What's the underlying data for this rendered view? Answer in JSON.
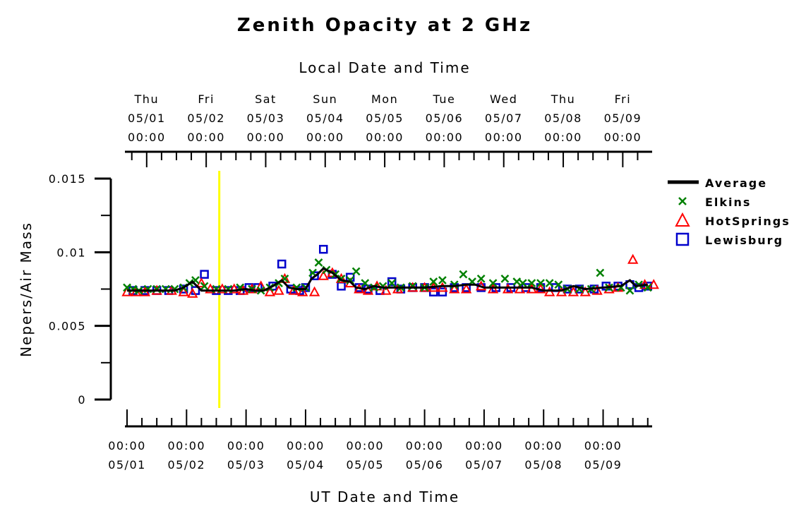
{
  "chart_data": {
    "type": "line",
    "title": "Zenith Opacity at 2 GHz",
    "top_axis_label": "Local Date and Time",
    "xlabel": "UT Date and Time",
    "ylabel": "Nepers/Air Mass",
    "ylim": [
      0,
      0.015
    ],
    "xlim_days": [
      0,
      8.8
    ],
    "y_ticks": [
      {
        "v": 0,
        "label": "0"
      },
      {
        "v": 0.005,
        "label": "0.005"
      },
      {
        "v": 0.01,
        "label": "0.01"
      },
      {
        "v": 0.015,
        "label": "0.015"
      }
    ],
    "bottom_ticks": [
      {
        "d": 0,
        "time": "00:00",
        "date": "05/01"
      },
      {
        "d": 1,
        "time": "00:00",
        "date": "05/02"
      },
      {
        "d": 2,
        "time": "00:00",
        "date": "05/03"
      },
      {
        "d": 3,
        "time": "00:00",
        "date": "05/04"
      },
      {
        "d": 4,
        "time": "00:00",
        "date": "05/05"
      },
      {
        "d": 5,
        "time": "00:00",
        "date": "05/06"
      },
      {
        "d": 6,
        "time": "00:00",
        "date": "05/07"
      },
      {
        "d": 7,
        "time": "00:00",
        "date": "05/08"
      },
      {
        "d": 8,
        "time": "00:00",
        "date": "05/09"
      }
    ],
    "top_ticks": [
      {
        "d": 0.33,
        "day": "Thu",
        "date": "05/01",
        "time": "00:00"
      },
      {
        "d": 1.33,
        "day": "Fri",
        "date": "05/02",
        "time": "00:00"
      },
      {
        "d": 2.33,
        "day": "Sat",
        "date": "05/03",
        "time": "00:00"
      },
      {
        "d": 3.33,
        "day": "Sun",
        "date": "05/04",
        "time": "00:00"
      },
      {
        "d": 4.33,
        "day": "Mon",
        "date": "05/05",
        "time": "00:00"
      },
      {
        "d": 5.33,
        "day": "Tue",
        "date": "05/06",
        "time": "00:00"
      },
      {
        "d": 6.33,
        "day": "Wed",
        "date": "05/07",
        "time": "00:00"
      },
      {
        "d": 7.33,
        "day": "Thu",
        "date": "05/08",
        "time": "00:00"
      },
      {
        "d": 8.33,
        "day": "Fri",
        "date": "05/09",
        "time": "00:00"
      }
    ],
    "marker_line_day": 1.55,
    "colors": {
      "average": "#000000",
      "elkins": "#008000",
      "hotsprings": "#ff0000",
      "lewisburg": "#0000cc",
      "marker": "#ffff00"
    },
    "series": [
      {
        "name": "Average",
        "kind": "line",
        "points": [
          [
            0,
            0.0074
          ],
          [
            0.5,
            0.0074
          ],
          [
            0.8,
            0.0074
          ],
          [
            0.95,
            0.0076
          ],
          [
            1.1,
            0.008
          ],
          [
            1.25,
            0.0074
          ],
          [
            1.5,
            0.0074
          ],
          [
            1.8,
            0.0074
          ],
          [
            2.0,
            0.0075
          ],
          [
            2.15,
            0.0074
          ],
          [
            2.3,
            0.0074
          ],
          [
            2.45,
            0.0077
          ],
          [
            2.6,
            0.0081
          ],
          [
            2.72,
            0.0076
          ],
          [
            2.85,
            0.0075
          ],
          [
            3.0,
            0.0075
          ],
          [
            3.1,
            0.0082
          ],
          [
            3.2,
            0.0085
          ],
          [
            3.3,
            0.0089
          ],
          [
            3.45,
            0.0086
          ],
          [
            3.6,
            0.0081
          ],
          [
            3.75,
            0.008
          ],
          [
            3.85,
            0.0076
          ],
          [
            4.0,
            0.0075
          ],
          [
            4.15,
            0.0077
          ],
          [
            4.3,
            0.0076
          ],
          [
            4.5,
            0.0076
          ],
          [
            4.8,
            0.0076
          ],
          [
            5.0,
            0.0076
          ],
          [
            5.3,
            0.0077
          ],
          [
            5.5,
            0.0077
          ],
          [
            5.7,
            0.0078
          ],
          [
            5.85,
            0.0078
          ],
          [
            6.0,
            0.0076
          ],
          [
            6.5,
            0.0076
          ],
          [
            6.8,
            0.0076
          ],
          [
            7.0,
            0.0074
          ],
          [
            7.3,
            0.0074
          ],
          [
            7.5,
            0.0077
          ],
          [
            7.7,
            0.0075
          ],
          [
            8.0,
            0.0076
          ],
          [
            8.3,
            0.0077
          ],
          [
            8.45,
            0.0081
          ],
          [
            8.55,
            0.0077
          ],
          [
            8.75,
            0.0078
          ]
        ]
      },
      {
        "name": "Elkins",
        "kind": "x",
        "points": [
          [
            0,
            0.0076
          ],
          [
            0.1,
            0.0075
          ],
          [
            0.2,
            0.0074
          ],
          [
            0.35,
            0.0075
          ],
          [
            0.5,
            0.0075
          ],
          [
            0.65,
            0.0075
          ],
          [
            0.8,
            0.0075
          ],
          [
            0.95,
            0.0076
          ],
          [
            1.05,
            0.0079
          ],
          [
            1.15,
            0.0081
          ],
          [
            1.3,
            0.0077
          ],
          [
            1.5,
            0.0075
          ],
          [
            1.7,
            0.0075
          ],
          [
            1.9,
            0.0076
          ],
          [
            2.1,
            0.0075
          ],
          [
            2.25,
            0.0074
          ],
          [
            2.4,
            0.0076
          ],
          [
            2.55,
            0.0079
          ],
          [
            2.65,
            0.0082
          ],
          [
            2.85,
            0.0076
          ],
          [
            3.0,
            0.0076
          ],
          [
            3.12,
            0.0086
          ],
          [
            3.22,
            0.0093
          ],
          [
            3.35,
            0.0088
          ],
          [
            3.5,
            0.0085
          ],
          [
            3.6,
            0.0082
          ],
          [
            3.75,
            0.0081
          ],
          [
            3.85,
            0.0087
          ],
          [
            4.0,
            0.0079
          ],
          [
            4.15,
            0.0076
          ],
          [
            4.3,
            0.0077
          ],
          [
            4.45,
            0.0079
          ],
          [
            4.6,
            0.0076
          ],
          [
            4.8,
            0.0077
          ],
          [
            5.0,
            0.0076
          ],
          [
            5.15,
            0.008
          ],
          [
            5.3,
            0.0081
          ],
          [
            5.5,
            0.0078
          ],
          [
            5.65,
            0.0085
          ],
          [
            5.8,
            0.008
          ],
          [
            5.95,
            0.0082
          ],
          [
            6.15,
            0.0079
          ],
          [
            6.35,
            0.0082
          ],
          [
            6.55,
            0.008
          ],
          [
            6.65,
            0.0079
          ],
          [
            6.8,
            0.0079
          ],
          [
            6.95,
            0.0079
          ],
          [
            7.1,
            0.0079
          ],
          [
            7.25,
            0.0078
          ],
          [
            7.4,
            0.0075
          ],
          [
            7.6,
            0.0075
          ],
          [
            7.8,
            0.0075
          ],
          [
            7.95,
            0.0086
          ],
          [
            8.1,
            0.0076
          ],
          [
            8.3,
            0.0076
          ],
          [
            8.45,
            0.0074
          ],
          [
            8.6,
            0.0078
          ],
          [
            8.75,
            0.0076
          ]
        ]
      },
      {
        "name": "HotSprings",
        "kind": "triangle",
        "points": [
          [
            0,
            0.0073
          ],
          [
            0.15,
            0.0073
          ],
          [
            0.3,
            0.0073
          ],
          [
            0.5,
            0.0074
          ],
          [
            0.75,
            0.0074
          ],
          [
            0.95,
            0.0073
          ],
          [
            1.1,
            0.0072
          ],
          [
            1.25,
            0.0079
          ],
          [
            1.4,
            0.0075
          ],
          [
            1.6,
            0.0075
          ],
          [
            1.8,
            0.0075
          ],
          [
            1.95,
            0.0074
          ],
          [
            2.1,
            0.0075
          ],
          [
            2.25,
            0.0077
          ],
          [
            2.4,
            0.0073
          ],
          [
            2.55,
            0.0074
          ],
          [
            2.65,
            0.0082
          ],
          [
            2.8,
            0.0074
          ],
          [
            2.95,
            0.0073
          ],
          [
            3.15,
            0.0073
          ],
          [
            3.3,
            0.0084
          ],
          [
            3.45,
            0.0086
          ],
          [
            3.6,
            0.0082
          ],
          [
            3.75,
            0.0079
          ],
          [
            3.9,
            0.0075
          ],
          [
            4.05,
            0.0074
          ],
          [
            4.2,
            0.0077
          ],
          [
            4.35,
            0.0074
          ],
          [
            4.55,
            0.0075
          ],
          [
            4.8,
            0.0076
          ],
          [
            5.0,
            0.0076
          ],
          [
            5.15,
            0.0076
          ],
          [
            5.3,
            0.0076
          ],
          [
            5.5,
            0.0075
          ],
          [
            5.7,
            0.0075
          ],
          [
            5.95,
            0.0077
          ],
          [
            6.15,
            0.0075
          ],
          [
            6.4,
            0.0075
          ],
          [
            6.6,
            0.0075
          ],
          [
            6.8,
            0.0075
          ],
          [
            6.95,
            0.0075
          ],
          [
            7.1,
            0.0073
          ],
          [
            7.3,
            0.0073
          ],
          [
            7.5,
            0.0073
          ],
          [
            7.7,
            0.0073
          ],
          [
            7.9,
            0.0074
          ],
          [
            8.1,
            0.0075
          ],
          [
            8.25,
            0.0076
          ],
          [
            8.5,
            0.0095
          ],
          [
            8.7,
            0.0078
          ],
          [
            8.85,
            0.0078
          ]
        ]
      },
      {
        "name": "Lewisburg",
        "kind": "square",
        "points": [
          [
            0.1,
            0.0074
          ],
          [
            0.3,
            0.0074
          ],
          [
            0.5,
            0.0074
          ],
          [
            0.7,
            0.0074
          ],
          [
            0.95,
            0.0075
          ],
          [
            1.15,
            0.0074
          ],
          [
            1.3,
            0.0085
          ],
          [
            1.5,
            0.0074
          ],
          [
            1.7,
            0.0074
          ],
          [
            1.9,
            0.0074
          ],
          [
            2.05,
            0.0076
          ],
          [
            2.2,
            0.0076
          ],
          [
            2.45,
            0.0077
          ],
          [
            2.6,
            0.0092
          ],
          [
            2.75,
            0.0075
          ],
          [
            2.9,
            0.0074
          ],
          [
            3.0,
            0.0076
          ],
          [
            3.15,
            0.0084
          ],
          [
            3.3,
            0.0102
          ],
          [
            3.45,
            0.0085
          ],
          [
            3.6,
            0.0077
          ],
          [
            3.75,
            0.0083
          ],
          [
            3.9,
            0.0076
          ],
          [
            4.05,
            0.0075
          ],
          [
            4.25,
            0.0074
          ],
          [
            4.45,
            0.008
          ],
          [
            4.6,
            0.0075
          ],
          [
            4.8,
            0.0076
          ],
          [
            5.0,
            0.0076
          ],
          [
            5.15,
            0.0073
          ],
          [
            5.3,
            0.0073
          ],
          [
            5.5,
            0.0076
          ],
          [
            5.7,
            0.0076
          ],
          [
            5.95,
            0.0076
          ],
          [
            6.2,
            0.0076
          ],
          [
            6.45,
            0.0076
          ],
          [
            6.7,
            0.0076
          ],
          [
            6.95,
            0.0076
          ],
          [
            7.2,
            0.0076
          ],
          [
            7.4,
            0.0075
          ],
          [
            7.6,
            0.0075
          ],
          [
            7.85,
            0.0075
          ],
          [
            8.05,
            0.0077
          ],
          [
            8.25,
            0.0077
          ],
          [
            8.45,
            0.0078
          ],
          [
            8.6,
            0.0076
          ],
          [
            8.75,
            0.0077
          ]
        ]
      }
    ],
    "legend": [
      {
        "name": "Average",
        "kind": "line"
      },
      {
        "name": "Elkins",
        "kind": "x"
      },
      {
        "name": "HotSprings",
        "kind": "triangle"
      },
      {
        "name": "Lewisburg",
        "kind": "square"
      }
    ],
    "legend_position": "right"
  }
}
